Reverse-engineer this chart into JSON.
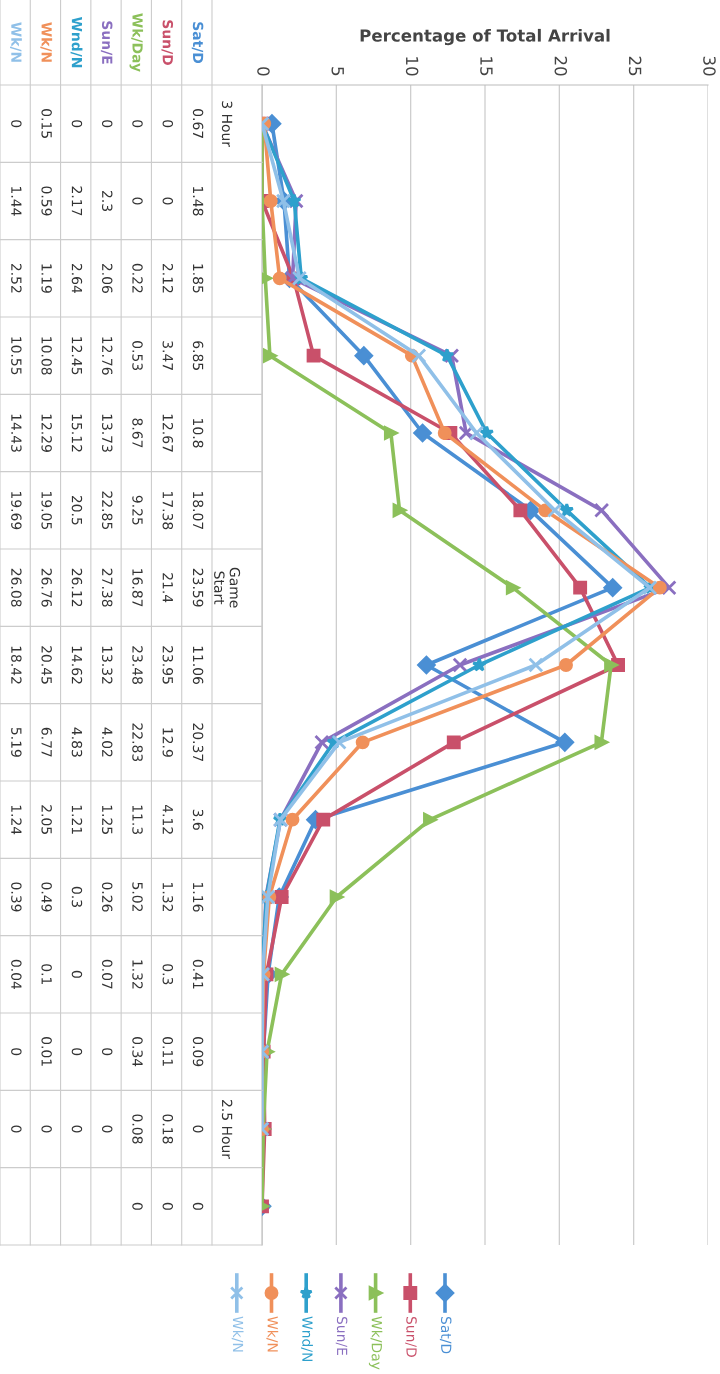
{
  "chart_data": {
    "type": "line",
    "orientation": "horizontal",
    "xlabel": "Percentage of Total Arrival",
    "categories": [
      "3 Hour",
      null,
      null,
      null,
      null,
      null,
      "Game\nStart",
      null,
      null,
      null,
      null,
      null,
      null,
      "2.5 Hour",
      null
    ],
    "xlim": [
      0,
      30
    ],
    "xticks": [
      0,
      5,
      10,
      15,
      20,
      25,
      30
    ],
    "grid": "x",
    "legend": "bottom",
    "data_labels": true,
    "series": [
      {
        "name": "Sat/D",
        "color": "#4a8fd4",
        "marker": "diamond",
        "values": [
          0.67,
          1.48,
          1.85,
          6.85,
          10.8,
          18.07,
          23.59,
          11.06,
          20.37,
          3.6,
          1.16,
          0.41,
          0.09,
          0,
          0
        ]
      },
      {
        "name": "Sun/D",
        "color": "#c9506a",
        "marker": "square",
        "values": [
          0,
          0,
          2.12,
          3.47,
          12.67,
          17.38,
          21.4,
          23.95,
          12.9,
          4.12,
          1.32,
          0.3,
          0.11,
          0.18,
          0
        ]
      },
      {
        "name": "Wk/Day",
        "color": "#8cc05a",
        "marker": "triangle",
        "values": [
          0,
          0,
          0.22,
          0.53,
          8.67,
          9.25,
          16.87,
          23.48,
          22.83,
          11.3,
          5.02,
          1.32,
          0.34,
          0.08,
          0
        ]
      },
      {
        "name": "Sun/E",
        "color": "#8a6fc0",
        "marker": "cross",
        "values": [
          0,
          2.3,
          2.06,
          12.76,
          13.73,
          22.85,
          27.38,
          13.32,
          4.02,
          1.25,
          0.26,
          0.07,
          0,
          0,
          null
        ]
      },
      {
        "name": "Wnd/N",
        "color": "#2ea0cc",
        "marker": "star",
        "values": [
          0,
          2.17,
          2.64,
          12.45,
          15.12,
          20.5,
          26.12,
          14.62,
          4.83,
          1.21,
          0.3,
          0,
          0,
          0,
          null
        ]
      },
      {
        "name": "Wk/N",
        "color": "#f0905a",
        "marker": "circle",
        "values": [
          0.15,
          0.59,
          1.19,
          10.08,
          12.29,
          19.05,
          26.76,
          20.45,
          6.77,
          2.05,
          0.49,
          0.1,
          0.01,
          0,
          null
        ]
      },
      {
        "name": "Wk/N",
        "color": "#90c0e8",
        "marker": "cross",
        "values": [
          0,
          1.44,
          2.52,
          10.55,
          14.43,
          19.69,
          26.08,
          18.42,
          5.19,
          1.24,
          0.39,
          0.04,
          0,
          0,
          null
        ]
      }
    ]
  }
}
